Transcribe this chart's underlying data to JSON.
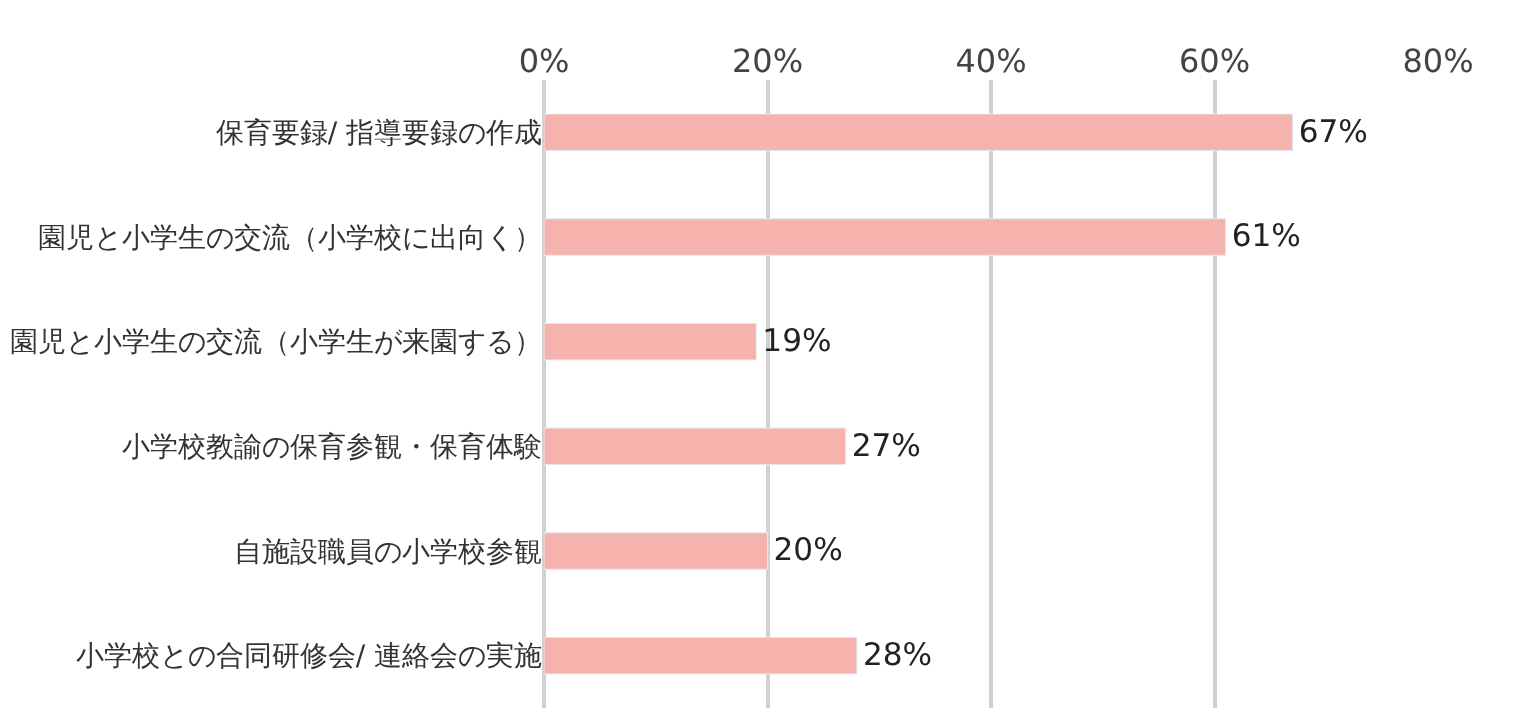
{
  "chart_data": {
    "type": "bar",
    "orientation": "horizontal",
    "categories": [
      "保育要録/ 指導要録の作成",
      "園児と小学生の交流（小学校に出向く）",
      "園児と小学生の交流（小学生が来園する）",
      "小学校教諭の保育参観・保育体験",
      "自施設職員の小学校参観",
      "小学校との合同研修会/ 連絡会の実施"
    ],
    "values": [
      67,
      61,
      19,
      27,
      20,
      28
    ],
    "value_labels": [
      "67%",
      "61%",
      "19%",
      "27%",
      "20%",
      "28%"
    ],
    "color": "#f6b3ad",
    "xlim": [
      0,
      80
    ],
    "xticks": [
      {
        "value": 0,
        "label": "0%"
      },
      {
        "value": 20,
        "label": "20%"
      },
      {
        "value": 40,
        "label": "40%"
      },
      {
        "value": 60,
        "label": "60%"
      },
      {
        "value": 80,
        "label": "80%"
      }
    ],
    "grid": "x"
  }
}
